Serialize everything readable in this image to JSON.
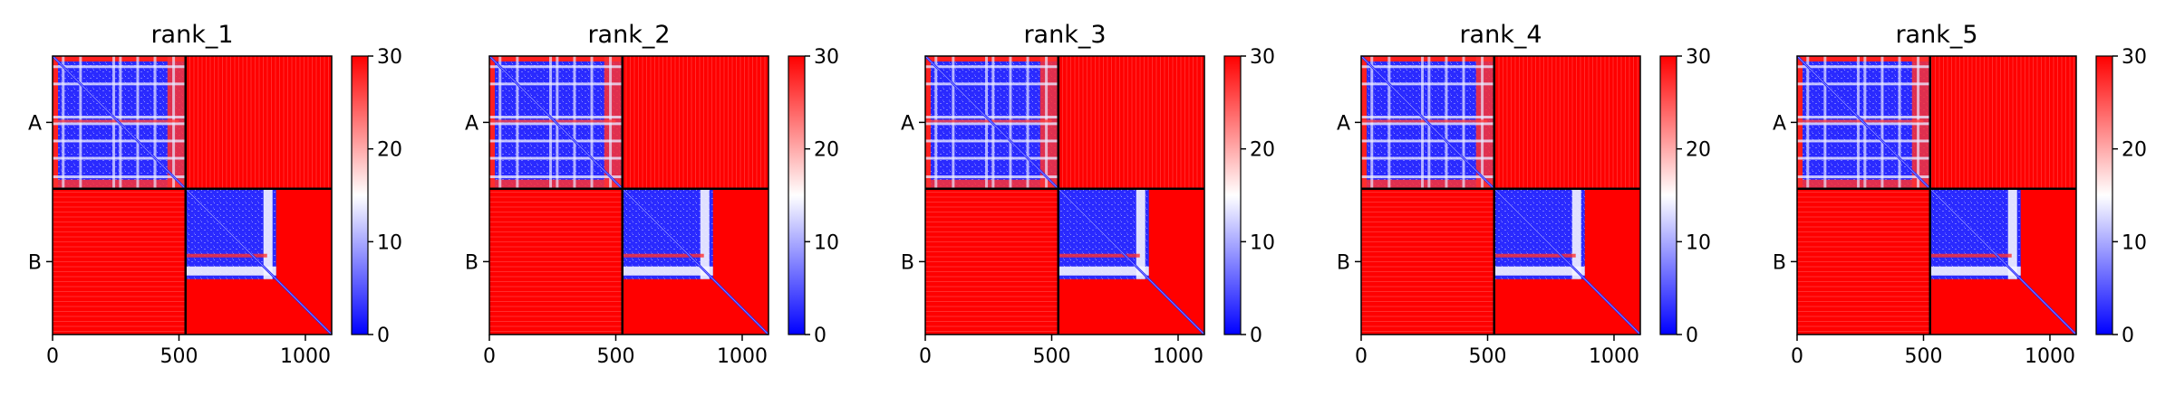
{
  "colors": {
    "low": "#0000ff",
    "mid": "#ffffff",
    "high": "#ff0000",
    "divider": "#000000"
  },
  "chart_data": [
    {
      "type": "heatmap",
      "title": "rank_1",
      "x_range": [
        0,
        1104
      ],
      "x_ticks": [
        0,
        500,
        1000
      ],
      "chain_labels": [
        "A",
        "B"
      ],
      "chain_boundary": 526,
      "colorbar": {
        "range": [
          0,
          30
        ],
        "ticks": [
          0,
          10,
          20,
          30
        ],
        "colormap": "bwr"
      },
      "grid": false
    },
    {
      "type": "heatmap",
      "title": "rank_2",
      "x_range": [
        0,
        1104
      ],
      "x_ticks": [
        0,
        500,
        1000
      ],
      "chain_labels": [
        "A",
        "B"
      ],
      "chain_boundary": 526,
      "colorbar": {
        "range": [
          0,
          30
        ],
        "ticks": [
          0,
          10,
          20,
          30
        ],
        "colormap": "bwr"
      },
      "grid": false
    },
    {
      "type": "heatmap",
      "title": "rank_3",
      "x_range": [
        0,
        1104
      ],
      "x_ticks": [
        0,
        500,
        1000
      ],
      "chain_labels": [
        "A",
        "B"
      ],
      "chain_boundary": 526,
      "colorbar": {
        "range": [
          0,
          30
        ],
        "ticks": [
          0,
          10,
          20,
          30
        ],
        "colormap": "bwr"
      },
      "grid": false
    },
    {
      "type": "heatmap",
      "title": "rank_4",
      "x_range": [
        0,
        1104
      ],
      "x_ticks": [
        0,
        500,
        1000
      ],
      "chain_labels": [
        "A",
        "B"
      ],
      "chain_boundary": 526,
      "colorbar": {
        "range": [
          0,
          30
        ],
        "ticks": [
          0,
          10,
          20,
          30
        ],
        "colormap": "bwr"
      },
      "grid": false
    },
    {
      "type": "heatmap",
      "title": "rank_5",
      "x_range": [
        0,
        1104
      ],
      "x_ticks": [
        0,
        500,
        1000
      ],
      "chain_labels": [
        "A",
        "B"
      ],
      "chain_boundary": 526,
      "colorbar": {
        "range": [
          0,
          30
        ],
        "ticks": [
          0,
          10,
          20,
          30
        ],
        "colormap": "bwr"
      },
      "grid": false
    }
  ]
}
